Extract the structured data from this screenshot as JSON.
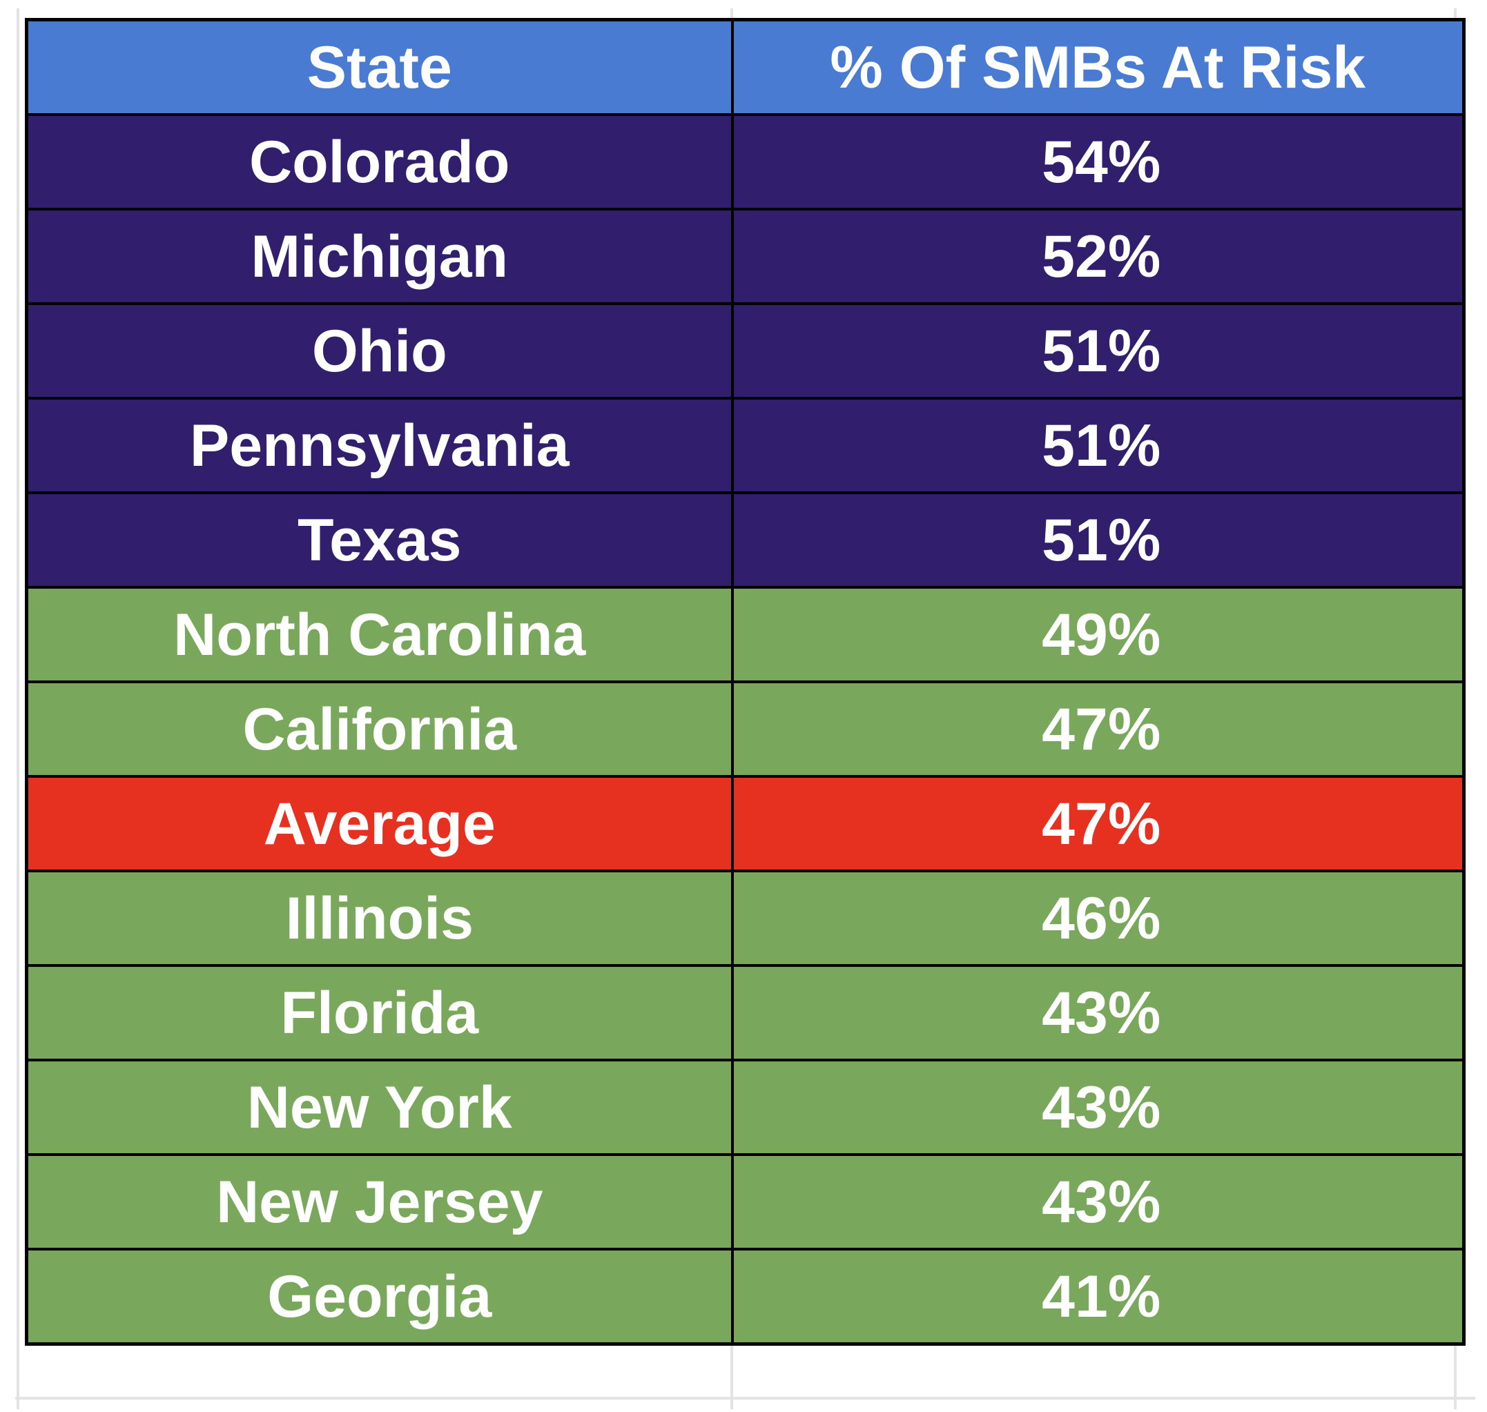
{
  "chart_data": {
    "type": "table",
    "columns": [
      "State",
      "% Of SMBs At Risk"
    ],
    "rows": [
      {
        "state": "Colorado",
        "value": "54%",
        "group": "above"
      },
      {
        "state": "Michigan",
        "value": "52%",
        "group": "above"
      },
      {
        "state": "Ohio",
        "value": "51%",
        "group": "above"
      },
      {
        "state": "Pennsylvania",
        "value": "51%",
        "group": "above"
      },
      {
        "state": "Texas",
        "value": "51%",
        "group": "above"
      },
      {
        "state": "North Carolina",
        "value": "49%",
        "group": "below"
      },
      {
        "state": "California",
        "value": "47%",
        "group": "below"
      },
      {
        "state": "Average",
        "value": "47%",
        "group": "average"
      },
      {
        "state": "Illinois",
        "value": "46%",
        "group": "below"
      },
      {
        "state": "Florida",
        "value": "43%",
        "group": "below"
      },
      {
        "state": "New York",
        "value": "43%",
        "group": "below"
      },
      {
        "state": "New Jersey",
        "value": "43%",
        "group": "below"
      },
      {
        "state": "Georgia",
        "value": "41%",
        "group": "below"
      }
    ]
  },
  "colors": {
    "header": "#4a7bd2",
    "above": "#311e6c",
    "below": "#79a75b",
    "average": "#e63121",
    "border": "#000000",
    "text": "#ffffff",
    "gridline": "#e3e3e3"
  }
}
